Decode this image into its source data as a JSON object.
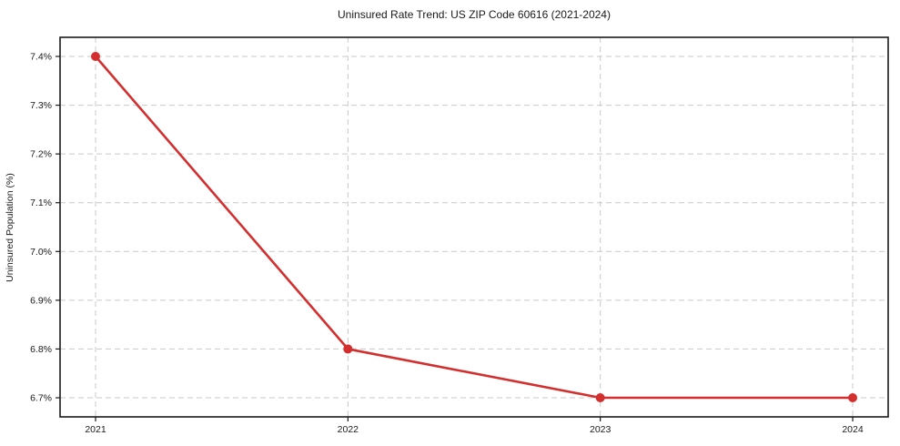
{
  "chart": {
    "title": "Uninsured Rate Trend: US ZIP Code 60616 (2021-2024)",
    "ylabel": "Uninsured Population (%)"
  },
  "chart_data": {
    "type": "line",
    "title": "Uninsured Rate Trend: US ZIP Code 60616 (2021-2024)",
    "xlabel": "",
    "ylabel": "Uninsured Population (%)",
    "x": [
      2021,
      2022,
      2023,
      2024
    ],
    "x_tick_labels": [
      "2021",
      "2022",
      "2023",
      "2024"
    ],
    "values": [
      7.4,
      6.8,
      6.7,
      6.7
    ],
    "y_tick_values": [
      7.4,
      7.3,
      7.2,
      7.1,
      7.0,
      6.9,
      6.8,
      6.7
    ],
    "y_tick_labels": [
      "7.4%",
      "7.3%",
      "7.2%",
      "7.1%",
      "7.0%",
      "6.9%",
      "6.8%",
      "6.7%"
    ],
    "ylim": [
      6.66,
      7.44
    ],
    "grid": true,
    "grid_style": "dashed",
    "legend": false,
    "colors": {
      "line": "#d32f2f",
      "marker": "#d32f2f",
      "grid": "#c9c9c9",
      "axis_border": "#1a1a1a",
      "text": "#1a1a1a"
    }
  }
}
